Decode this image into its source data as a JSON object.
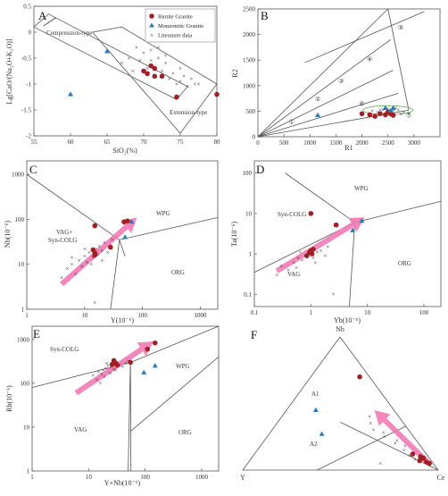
{
  "legend": {
    "biotite": "Biotite Granite",
    "monzonitic": "Monzonitic Granite",
    "literature": "Literature data"
  },
  "colors": {
    "biotite": "#a31f24",
    "monzonitic": "#2a7bb8",
    "literature": "#55aa44",
    "arrow": "#f27ab5",
    "line": "#555555"
  },
  "chart_data": [
    {
      "panel": "A",
      "type": "scatter",
      "xlabel": "SiO₂(%)",
      "ylabel": "Lg[CaO/(Na₂O+K₂O)]",
      "xlim": [
        55,
        80
      ],
      "ylim": [
        -2,
        0.5
      ],
      "xticks": [
        55,
        60,
        65,
        70,
        75,
        80
      ],
      "yticks": [
        0.5,
        0,
        -0.5,
        -1,
        -1.5,
        -2
      ],
      "ytick_labels": [
        "0.5",
        "0",
        "-0.5",
        "-1",
        "-1.5",
        "-2"
      ],
      "field_labels": {
        "compression": "Compression-type",
        "extension": "Extension-type"
      },
      "series": [
        {
          "name": "Biotite Granite",
          "points": [
            [
              70,
              -0.75
            ],
            [
              70.5,
              -0.8
            ],
            [
              71,
              -0.65
            ],
            [
              71.5,
              -0.85
            ],
            [
              72.5,
              -0.85
            ],
            [
              74.5,
              -1.25
            ],
            [
              80,
              -1.2
            ],
            [
              71.5,
              -0.7
            ]
          ]
        },
        {
          "name": "Monzonitic Granite",
          "points": [
            [
              65,
              -0.37
            ],
            [
              60,
              -1.2
            ]
          ]
        },
        {
          "name": "Literature data",
          "points": [
            [
              67,
              -0.6
            ],
            [
              68,
              -0.5
            ],
            [
              69,
              -0.3
            ],
            [
              70,
              -0.4
            ],
            [
              70.5,
              -0.7
            ],
            [
              71,
              -0.55
            ],
            [
              72,
              -0.5
            ],
            [
              72.5,
              -0.75
            ],
            [
              73,
              -0.6
            ],
            [
              73.5,
              -0.9
            ],
            [
              74,
              -0.8
            ],
            [
              74.5,
              -1.0
            ],
            [
              75,
              -0.95
            ],
            [
              75.5,
              -0.85
            ],
            [
              76,
              -1.05
            ],
            [
              76.5,
              -0.9
            ],
            [
              77,
              -1.0
            ],
            [
              72,
              -0.3
            ],
            [
              71,
              -0.35
            ],
            [
              69.5,
              -0.55
            ],
            [
              73,
              -0.45
            ],
            [
              75,
              -0.7
            ],
            [
              77.5,
              -1.0
            ],
            [
              68.5,
              -0.75
            ]
          ]
        }
      ]
    },
    {
      "panel": "B",
      "type": "scatter",
      "xlabel": "R1",
      "ylabel": "R2",
      "xlim": [
        0,
        3500
      ],
      "ylim": [
        0,
        2500
      ],
      "xticks": [
        0,
        500,
        1000,
        1500,
        2000,
        2500,
        3000
      ],
      "yticks": [
        0,
        500,
        1000,
        1500,
        2000,
        2500
      ],
      "field_numbers": [
        "①",
        "②",
        "③",
        "④",
        "⑤",
        "⑥",
        "⑦"
      ],
      "series": [
        {
          "name": "Biotite Granite",
          "points": [
            [
              2000,
              450
            ],
            [
              2150,
              430
            ],
            [
              2250,
              400
            ],
            [
              2350,
              450
            ],
            [
              2450,
              430
            ],
            [
              2500,
              480
            ],
            [
              2550,
              450
            ],
            [
              2600,
              420
            ]
          ]
        },
        {
          "name": "Monzonitic Granite",
          "points": [
            [
              1150,
              420
            ],
            [
              2450,
              560
            ],
            [
              2550,
              510
            ],
            [
              2600,
              560
            ]
          ]
        },
        {
          "name": "Literature data",
          "points": [
            [
              2200,
              500
            ],
            [
              2300,
              480
            ],
            [
              2400,
              520
            ],
            [
              2500,
              540
            ],
            [
              2600,
              500
            ],
            [
              2700,
              520
            ],
            [
              2800,
              480
            ],
            [
              2900,
              460
            ],
            [
              2750,
              440
            ],
            [
              2650,
              560
            ],
            [
              2350,
              520
            ]
          ]
        }
      ]
    },
    {
      "panel": "C",
      "type": "scatter",
      "xlabel": "Y(10⁻⁶)",
      "ylabel": "Nb(10⁻⁶)",
      "scale": "log",
      "xlim": [
        1,
        2000
      ],
      "ylim": [
        1,
        2000
      ],
      "xticks": [
        1,
        10,
        100,
        1000
      ],
      "xtick_labels": [
        "1",
        "10",
        "100",
        "1000"
      ],
      "yticks": [
        1,
        10,
        100,
        1000
      ],
      "ytick_labels": [
        "1",
        "10",
        "100",
        "1000"
      ],
      "field_labels": {
        "wpg": "WPG",
        "vag": "VAG+",
        "syn": "Syn-COLG",
        "org": "ORG"
      },
      "series": [
        {
          "name": "Biotite Granite",
          "points": [
            [
              15,
              72
            ],
            [
              14,
              21
            ],
            [
              15,
              18
            ],
            [
              15,
              16
            ],
            [
              28,
              24
            ],
            [
              48,
              88
            ],
            [
              55,
              92
            ]
          ]
        },
        {
          "name": "Monzonitic Granite",
          "points": [
            [
              50,
              40
            ],
            [
              65,
              88
            ]
          ]
        },
        {
          "name": "Literature data",
          "points": [
            [
              5,
              8
            ],
            [
              6,
              10
            ],
            [
              8,
              12
            ],
            [
              10,
              15
            ],
            [
              12,
              18
            ],
            [
              14,
              14
            ],
            [
              16,
              22
            ],
            [
              18,
              25
            ],
            [
              20,
              20
            ],
            [
              22,
              30
            ],
            [
              9,
              9
            ],
            [
              7,
              6
            ],
            [
              11,
              11
            ],
            [
              13,
              10
            ],
            [
              20,
              12
            ],
            [
              25,
              18
            ],
            [
              4,
              5
            ],
            [
              6,
              14
            ],
            [
              10,
              22
            ],
            [
              15,
              1.4
            ],
            [
              30,
              35
            ],
            [
              17,
              16
            ]
          ]
        }
      ]
    },
    {
      "panel": "D",
      "type": "scatter",
      "xlabel": "Yb(10⁻⁶)",
      "ylabel": "Ta(10⁻⁶)",
      "scale": "log",
      "xlim": [
        0.1,
        200
      ],
      "ylim": [
        0.05,
        200
      ],
      "xticks": [
        0.1,
        1,
        10,
        100
      ],
      "xtick_labels": [
        "0.1",
        "1",
        "10",
        "100"
      ],
      "yticks": [
        0.1,
        1,
        10,
        100
      ],
      "ytick_labels": [
        "0.1",
        "1",
        "10",
        "100"
      ],
      "field_labels": {
        "wpg": "WPG",
        "syn": "Syn-COLG",
        "vag": "VAG",
        "org": "ORG"
      },
      "series": [
        {
          "name": "Biotite Granite",
          "points": [
            [
              1.0,
              10
            ],
            [
              1.0,
              1.2
            ],
            [
              0.95,
              1.1
            ],
            [
              1.05,
              1.0
            ],
            [
              1.1,
              1.3
            ],
            [
              2.8,
              5.2
            ],
            [
              0.85,
              0.9
            ]
          ]
        },
        {
          "name": "Monzonitic Granite",
          "points": [
            [
              5.5,
              3.8
            ],
            [
              8,
              6.5
            ]
          ]
        },
        {
          "name": "Literature data",
          "points": [
            [
              0.3,
              0.5
            ],
            [
              0.5,
              0.6
            ],
            [
              0.6,
              0.8
            ],
            [
              0.7,
              0.7
            ],
            [
              0.8,
              0.9
            ],
            [
              0.9,
              1.0
            ],
            [
              1.1,
              0.8
            ],
            [
              1.3,
              1.1
            ],
            [
              1.5,
              1.2
            ],
            [
              0.4,
              0.4
            ],
            [
              0.55,
              0.45
            ],
            [
              0.65,
              1.1
            ],
            [
              1.2,
              0.6
            ],
            [
              2.0,
              1.5
            ],
            [
              2.5,
              0.1
            ],
            [
              0.25,
              0.3
            ],
            [
              1.8,
              0.9
            ]
          ]
        }
      ]
    },
    {
      "panel": "E",
      "type": "scatter",
      "xlabel": "Y+Nb(10⁻⁶)",
      "ylabel": "Rb(10⁻⁶)",
      "scale": "log",
      "xlim": [
        1,
        2000
      ],
      "ylim": [
        1,
        2000
      ],
      "xticks": [
        1,
        10,
        100,
        1000
      ],
      "xtick_labels": [
        "1",
        "10",
        "100",
        "1000"
      ],
      "yticks": [
        1,
        10,
        100,
        1000
      ],
      "ytick_labels": [
        "1",
        "10",
        "100",
        "1000"
      ],
      "field_labels": {
        "syn": "Syn-COLG",
        "wpg": "WPG",
        "vag": "VAG",
        "org": "ORG"
      },
      "series": [
        {
          "name": "Biotite Granite",
          "points": [
            [
              28,
              330
            ],
            [
              30,
              290
            ],
            [
              26,
              270
            ],
            [
              32,
              260
            ],
            [
              55,
              300
            ],
            [
              110,
              600
            ],
            [
              150,
              830
            ]
          ]
        },
        {
          "name": "Monzonitic Granite",
          "points": [
            [
              95,
              175
            ],
            [
              150,
              250
            ]
          ]
        },
        {
          "name": "Literature data",
          "points": [
            [
              12,
              150
            ],
            [
              15,
              180
            ],
            [
              18,
              200
            ],
            [
              20,
              220
            ],
            [
              22,
              250
            ],
            [
              25,
              230
            ],
            [
              30,
              200
            ],
            [
              35,
              260
            ],
            [
              40,
              240
            ],
            [
              14,
              120
            ],
            [
              16,
              100
            ],
            [
              19,
              140
            ],
            [
              24,
              170
            ],
            [
              45,
              280
            ],
            [
              50,
              320
            ],
            [
              28,
              210
            ],
            [
              21,
              280
            ],
            [
              17,
              160
            ]
          ]
        }
      ]
    },
    {
      "panel": "F",
      "type": "ternary",
      "vertices": {
        "top": "Nb",
        "left": "Y",
        "right": "Ce"
      },
      "field_labels": {
        "a1": "A1",
        "a2": "A2"
      },
      "series": [
        {
          "name": "Biotite Granite",
          "points": [
            [
              0.7,
              0.05,
              0.25
            ],
            [
              0.12,
              0.07,
              0.81
            ],
            [
              0.1,
              0.04,
              0.86
            ],
            [
              0.08,
              0.05,
              0.87
            ],
            [
              0.06,
              0.03,
              0.91
            ],
            [
              0.05,
              0.02,
              0.93
            ],
            [
              0.07,
              0.06,
              0.87
            ],
            [
              0.09,
              0.03,
              0.88
            ]
          ]
        },
        {
          "name": "Monzonitic Granite",
          "points": [
            [
              0.45,
              0.4,
              0.15
            ],
            [
              0.27,
              0.46,
              0.27
            ]
          ]
        },
        {
          "name": "Literature data",
          "points": [
            [
              0.4,
              0.15,
              0.45
            ],
            [
              0.35,
              0.17,
              0.48
            ],
            [
              0.3,
              0.18,
              0.52
            ],
            [
              0.28,
              0.14,
              0.58
            ],
            [
              0.25,
              0.15,
              0.6
            ],
            [
              0.22,
              0.1,
              0.68
            ],
            [
              0.2,
              0.12,
              0.68
            ],
            [
              0.18,
              0.08,
              0.74
            ],
            [
              0.15,
              0.1,
              0.75
            ],
            [
              0.13,
              0.06,
              0.81
            ],
            [
              0.11,
              0.09,
              0.8
            ],
            [
              0.08,
              0.08,
              0.84
            ],
            [
              0.05,
              0.27,
              0.68
            ]
          ]
        }
      ]
    }
  ]
}
